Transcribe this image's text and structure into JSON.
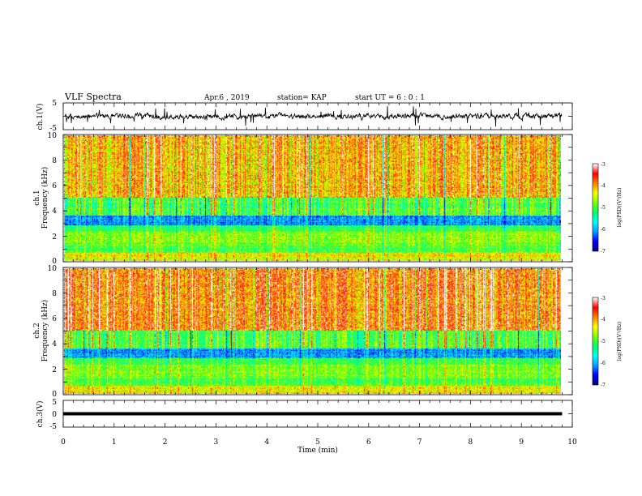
{
  "header": {
    "title": "VLF Spectra",
    "date": "Apr.6 , 2019",
    "station": "station= KAP",
    "start": "start UT = 6 : 0 : 1"
  },
  "chart_data": [
    {
      "id": "ch1_waveform",
      "type": "line",
      "ylabel": "ch.1(V)",
      "ylim": [
        -5,
        5
      ],
      "ytick_labels": [
        "5",
        "-5"
      ],
      "xlim": [
        0,
        10
      ],
      "data_end_min": 9.8,
      "style": {
        "color": "#000000"
      }
    },
    {
      "id": "ch1_spectrogram",
      "type": "heatmap",
      "ylabel": "ch.1",
      "ylabel2": "Frequency (kHz)",
      "ylim": [
        0,
        10
      ],
      "ytick_labels": [
        "0",
        "2",
        "4",
        "6",
        "8",
        "10"
      ],
      "xlim": [
        0,
        10
      ],
      "data_end_min": 9.8,
      "colorbar": {
        "label": "log(PSD)(V²/Hz)",
        "tick_labels": [
          "-3",
          "-4",
          "-5",
          "-6",
          "-7"
        ],
        "range": [
          -7,
          -3
        ]
      }
    },
    {
      "id": "ch2_spectrogram",
      "type": "heatmap",
      "ylabel": "ch.2",
      "ylabel2": "Frequency (kHz)",
      "ylim": [
        0,
        10
      ],
      "ytick_labels": [
        "0",
        "2",
        "4",
        "6",
        "8",
        "10"
      ],
      "xlim": [
        0,
        10
      ],
      "data_end_min": 9.8,
      "colorbar": {
        "label": "log(PSD)(V²/Hz)",
        "tick_labels": [
          "-3",
          "-4",
          "-5",
          "-6",
          "-7"
        ],
        "range": [
          -7,
          -3
        ]
      }
    },
    {
      "id": "ch3_waveform",
      "type": "line",
      "ylabel": "ch.3(V)",
      "ylim": [
        -5,
        5
      ],
      "ytick_labels": [
        "5",
        "0",
        "-5"
      ],
      "xlim": [
        0,
        10
      ],
      "xtick_labels": [
        "0",
        "1",
        "2",
        "3",
        "4",
        "5",
        "6",
        "7",
        "8",
        "9",
        "10"
      ],
      "xlabel": "Time (min)",
      "data_end_min": 9.8,
      "style": {
        "color": "#000000"
      }
    }
  ],
  "colormap": [
    "#000080",
    "#0000ff",
    "#00a0ff",
    "#00ffff",
    "#00ff60",
    "#80ff00",
    "#ffff00",
    "#ff8000",
    "#ff0000",
    "#ffffff"
  ]
}
